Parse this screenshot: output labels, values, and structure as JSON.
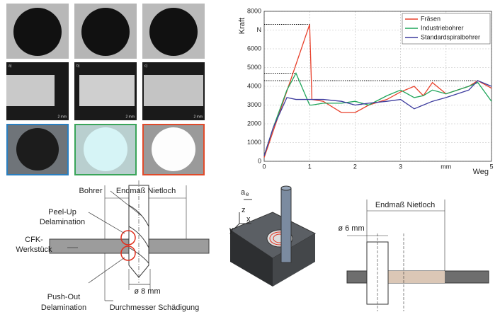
{
  "chart_data": {
    "type": "line",
    "x": [
      0,
      0.2,
      0.5,
      0.7,
      1.0,
      1.05,
      1.3,
      1.7,
      2.0,
      2.3,
      2.7,
      3.0,
      3.3,
      3.5,
      3.7,
      4.0,
      4.5,
      4.7,
      5.0
    ],
    "series": [
      {
        "name": "Fräsen",
        "color": "#e8412c",
        "values": [
          200,
          1620,
          3750,
          5170,
          7300,
          3300,
          3200,
          2600,
          2600,
          3000,
          3300,
          3700,
          4000,
          3500,
          4200,
          3600,
          4000,
          4300,
          3900
        ]
      },
      {
        "name": "Industriebohrer",
        "color": "#1fa55a",
        "values": [
          300,
          1800,
          3800,
          4700,
          3000,
          3000,
          3100,
          3100,
          3200,
          3000,
          3500,
          3800,
          3400,
          3500,
          3800,
          3600,
          4000,
          4200,
          3200
        ]
      },
      {
        "name": "Standardspiralbohrer",
        "color": "#3d3c9e",
        "values": [
          300,
          1800,
          3400,
          3300,
          3300,
          3300,
          3300,
          3200,
          3000,
          3100,
          3200,
          3300,
          2800,
          3000,
          3200,
          3400,
          3800,
          4300,
          4000
        ]
      }
    ],
    "xlabel": "Weg",
    "ylabel": "Kraft",
    "xlim": [
      0,
      5
    ],
    "xticks": [
      0,
      1,
      2,
      3,
      {
        "value": 4,
        "label": "mm"
      },
      5
    ],
    "ylim": [
      0,
      8000
    ],
    "yticks": [
      0,
      1000,
      2000,
      3000,
      4000,
      5000,
      6000,
      {
        "value": 7000,
        "label": "N"
      },
      8000
    ],
    "grid": true,
    "legend": "upper right"
  },
  "photos": {
    "labels": [
      "a)",
      "b)",
      "c)"
    ],
    "scale": "2 mm"
  },
  "diagram_left": {
    "tool": "Bohrer",
    "dimension": "Endmaß Nietloch",
    "peel_up": [
      "Peel-Up",
      "Delamination"
    ],
    "workpiece": [
      "CFK-",
      "Werkstück"
    ],
    "push_out": [
      "Push-Out",
      "Delamination"
    ],
    "diameter": "ø 8 mm",
    "damage": "Durchmesser Schädigung"
  },
  "diagram_middle": {
    "ae": "a",
    "ae_sub": "e",
    "z": "z",
    "x": "x",
    "y": "y"
  },
  "diagram_right": {
    "dimension": "Endmaß Nietloch",
    "diameter": "ø 6 mm"
  }
}
